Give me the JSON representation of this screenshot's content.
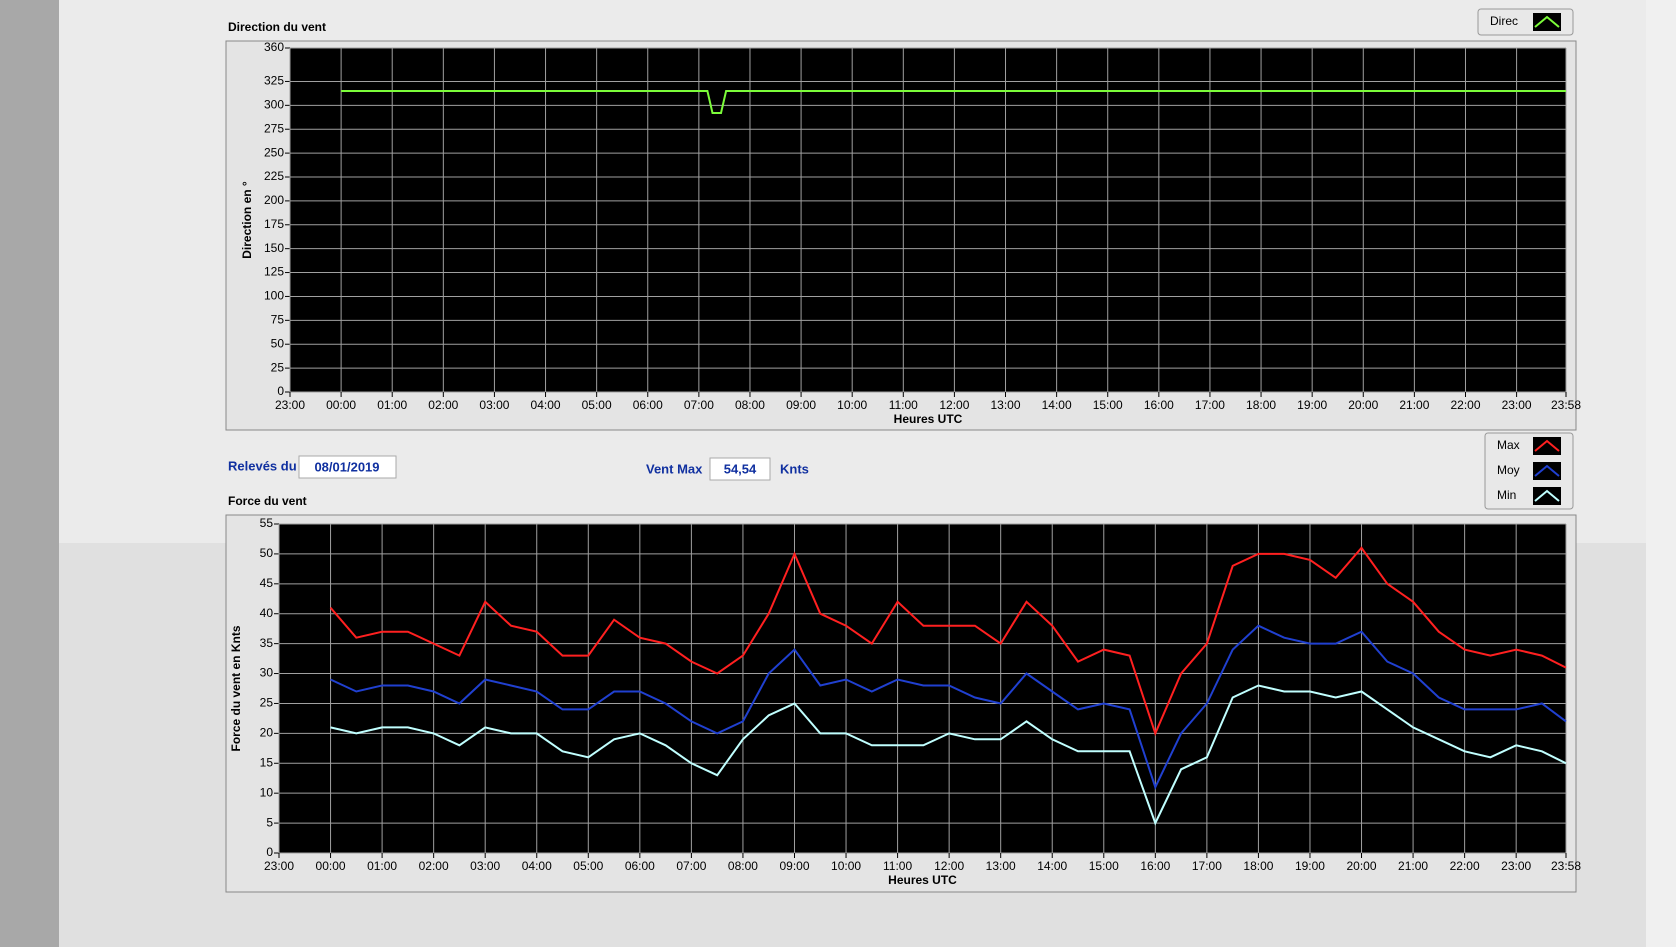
{
  "chart_data": [
    {
      "type": "line",
      "title": "Direction du vent",
      "x_label": "Heures UTC",
      "y_label": "Direction en °",
      "x": [
        0,
        430,
        436,
        446,
        452,
        1438
      ],
      "series": [
        {
          "name": "Direc",
          "color": "#7cfc3a",
          "values": [
            315,
            315,
            292,
            292,
            315,
            315
          ]
        }
      ],
      "xlim": [
        -60,
        1438
      ],
      "xticks": [
        {
          "value": -60,
          "label": "23:00"
        },
        {
          "value": 0,
          "label": "00:00"
        },
        {
          "value": 60,
          "label": "01:00"
        },
        {
          "value": 120,
          "label": "02:00"
        },
        {
          "value": 180,
          "label": "03:00"
        },
        {
          "value": 240,
          "label": "04:00"
        },
        {
          "value": 300,
          "label": "05:00"
        },
        {
          "value": 360,
          "label": "06:00"
        },
        {
          "value": 420,
          "label": "07:00"
        },
        {
          "value": 480,
          "label": "08:00"
        },
        {
          "value": 540,
          "label": "09:00"
        },
        {
          "value": 600,
          "label": "10:00"
        },
        {
          "value": 660,
          "label": "11:00"
        },
        {
          "value": 720,
          "label": "12:00"
        },
        {
          "value": 780,
          "label": "13:00"
        },
        {
          "value": 840,
          "label": "14:00"
        },
        {
          "value": 900,
          "label": "15:00"
        },
        {
          "value": 960,
          "label": "16:00"
        },
        {
          "value": 1020,
          "label": "17:00"
        },
        {
          "value": 1080,
          "label": "18:00"
        },
        {
          "value": 1140,
          "label": "19:00"
        },
        {
          "value": 1200,
          "label": "20:00"
        },
        {
          "value": 1260,
          "label": "21:00"
        },
        {
          "value": 1320,
          "label": "22:00"
        },
        {
          "value": 1380,
          "label": "23:00"
        },
        {
          "value": 1438,
          "label": "23:58"
        }
      ],
      "ylim": [
        0,
        360
      ],
      "yticks": [
        0,
        25,
        50,
        75,
        100,
        125,
        150,
        175,
        200,
        225,
        250,
        275,
        300,
        325,
        360
      ],
      "grid": true
    },
    {
      "type": "line",
      "title": "Force du vent",
      "x_label": "Heures UTC",
      "y_label": "Force du vent en Knts",
      "x": [
        0,
        30,
        60,
        90,
        120,
        150,
        180,
        210,
        240,
        270,
        300,
        330,
        360,
        390,
        420,
        450,
        480,
        510,
        540,
        570,
        600,
        630,
        660,
        690,
        720,
        750,
        780,
        810,
        840,
        870,
        900,
        930,
        960,
        990,
        1020,
        1050,
        1080,
        1110,
        1140,
        1170,
        1200,
        1230,
        1260,
        1290,
        1320,
        1350,
        1380,
        1410,
        1438
      ],
      "series": [
        {
          "name": "Max",
          "color": "#ff2020",
          "values": [
            41,
            36,
            37,
            37,
            35,
            33,
            42,
            38,
            37,
            33,
            33,
            39,
            36,
            35,
            32,
            30,
            33,
            40,
            50,
            40,
            38,
            35,
            42,
            38,
            38,
            38,
            35,
            42,
            38,
            32,
            34,
            33,
            20,
            30,
            35,
            48,
            50,
            50,
            49,
            46,
            51,
            45,
            42,
            37,
            34,
            33,
            34,
            33,
            31
          ]
        },
        {
          "name": "Moy",
          "color": "#2040d0",
          "values": [
            29,
            27,
            28,
            28,
            27,
            25,
            29,
            28,
            27,
            24,
            24,
            27,
            27,
            25,
            22,
            20,
            22,
            30,
            34,
            28,
            29,
            27,
            29,
            28,
            28,
            26,
            25,
            30,
            27,
            24,
            25,
            24,
            11,
            20,
            25,
            34,
            38,
            36,
            35,
            35,
            37,
            32,
            30,
            26,
            24,
            24,
            24,
            25,
            22
          ]
        },
        {
          "name": "Min",
          "color": "#c0ffff",
          "values": [
            21,
            20,
            21,
            21,
            20,
            18,
            21,
            20,
            20,
            17,
            16,
            19,
            20,
            18,
            15,
            13,
            19,
            23,
            25,
            20,
            20,
            18,
            18,
            18,
            20,
            19,
            19,
            22,
            19,
            17,
            17,
            17,
            5,
            14,
            16,
            26,
            28,
            27,
            27,
            26,
            27,
            24,
            21,
            19,
            17,
            16,
            18,
            17,
            15
          ]
        }
      ],
      "xlim": [
        -60,
        1438
      ],
      "xticks": [
        {
          "value": -60,
          "label": "23:00"
        },
        {
          "value": 0,
          "label": "00:00"
        },
        {
          "value": 60,
          "label": "01:00"
        },
        {
          "value": 120,
          "label": "02:00"
        },
        {
          "value": 180,
          "label": "03:00"
        },
        {
          "value": 240,
          "label": "04:00"
        },
        {
          "value": 300,
          "label": "05:00"
        },
        {
          "value": 360,
          "label": "06:00"
        },
        {
          "value": 420,
          "label": "07:00"
        },
        {
          "value": 480,
          "label": "08:00"
        },
        {
          "value": 540,
          "label": "09:00"
        },
        {
          "value": 600,
          "label": "10:00"
        },
        {
          "value": 660,
          "label": "11:00"
        },
        {
          "value": 720,
          "label": "12:00"
        },
        {
          "value": 780,
          "label": "13:00"
        },
        {
          "value": 840,
          "label": "14:00"
        },
        {
          "value": 900,
          "label": "15:00"
        },
        {
          "value": 960,
          "label": "16:00"
        },
        {
          "value": 1020,
          "label": "17:00"
        },
        {
          "value": 1080,
          "label": "18:00"
        },
        {
          "value": 1140,
          "label": "19:00"
        },
        {
          "value": 1200,
          "label": "20:00"
        },
        {
          "value": 1260,
          "label": "21:00"
        },
        {
          "value": 1320,
          "label": "22:00"
        },
        {
          "value": 1380,
          "label": "23:00"
        },
        {
          "value": 1438,
          "label": "23:58"
        }
      ],
      "ylim": [
        0,
        55
      ],
      "yticks": [
        0,
        5,
        10,
        15,
        20,
        25,
        30,
        35,
        40,
        45,
        50,
        55
      ],
      "grid": true
    }
  ],
  "controls": {
    "date_label": "Relevés du",
    "date": "08/01/2019",
    "vent_max_label": "Vent Max",
    "vent_max": "54,54",
    "unit": "Knts"
  }
}
